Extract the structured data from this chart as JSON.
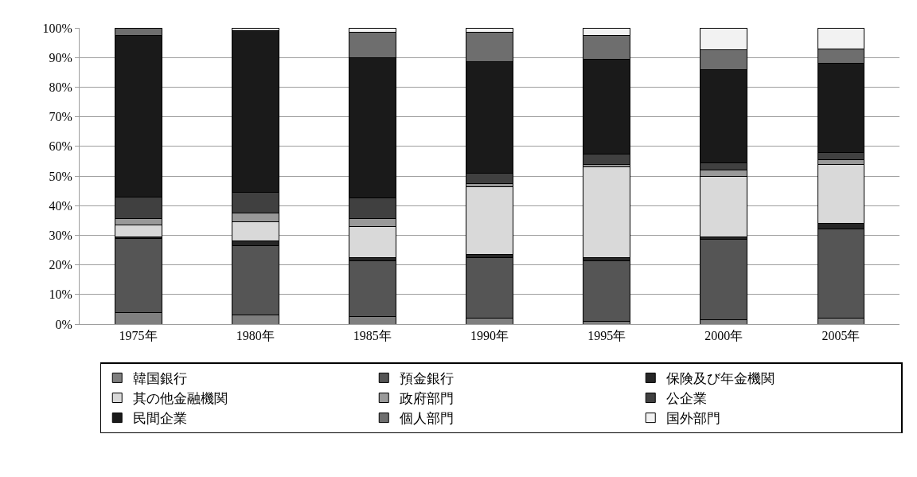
{
  "chart_data": {
    "type": "bar",
    "stacked": true,
    "categories": [
      "1975年",
      "1980年",
      "1985年",
      "1990年",
      "1995年",
      "2000年",
      "2005年"
    ],
    "series": [
      {
        "name": "韓国銀行",
        "color": "#7f7f7f",
        "values": [
          4,
          3,
          2.5,
          2,
          1,
          1.5,
          2
        ]
      },
      {
        "name": "預金銀行",
        "color": "#555555",
        "values": [
          25,
          23.5,
          19,
          20.5,
          20.5,
          27,
          30
        ]
      },
      {
        "name": "保険及び年金機関",
        "color": "#262626",
        "values": [
          0.5,
          1.5,
          1,
          1,
          1,
          1,
          2
        ]
      },
      {
        "name": "其の他金融機関",
        "color": "#d9d9d9",
        "values": [
          4,
          6.5,
          10.5,
          23,
          30.5,
          20.5,
          20
        ]
      },
      {
        "name": "政府部門",
        "color": "#999999",
        "values": [
          2,
          3,
          2.5,
          1,
          1,
          2,
          1.5
        ]
      },
      {
        "name": "公企業",
        "color": "#404040",
        "values": [
          7.5,
          7,
          7,
          3.5,
          3.5,
          2.5,
          2.5
        ]
      },
      {
        "name": "民間企業",
        "color": "#1a1a1a",
        "values": [
          54.5,
          54.5,
          47.5,
          37.5,
          32,
          31.5,
          30
        ]
      },
      {
        "name": "個人部門",
        "color": "#6e6e6e",
        "values": [
          2.5,
          null,
          8.5,
          10,
          8,
          6.5,
          5
        ]
      },
      {
        "name": "国外部門",
        "color": "#f2f2f2",
        "values": [
          null,
          1,
          1.5,
          1.5,
          2.5,
          7.5,
          7
        ]
      }
    ],
    "ylim": [
      0,
      100
    ],
    "yticks": [
      {
        "value": 0,
        "label": "0%"
      },
      {
        "value": 10,
        "label": "10%"
      },
      {
        "value": 20,
        "label": "20%"
      },
      {
        "value": 30,
        "label": "30%"
      },
      {
        "value": 40,
        "label": "40%"
      },
      {
        "value": 50,
        "label": "50%"
      },
      {
        "value": 60,
        "label": "60%"
      },
      {
        "value": 70,
        "label": "70%"
      },
      {
        "value": 80,
        "label": "80%"
      },
      {
        "value": 90,
        "label": "90%"
      },
      {
        "value": 100,
        "label": "100%"
      }
    ],
    "grid": "y",
    "legend": "bottom"
  }
}
